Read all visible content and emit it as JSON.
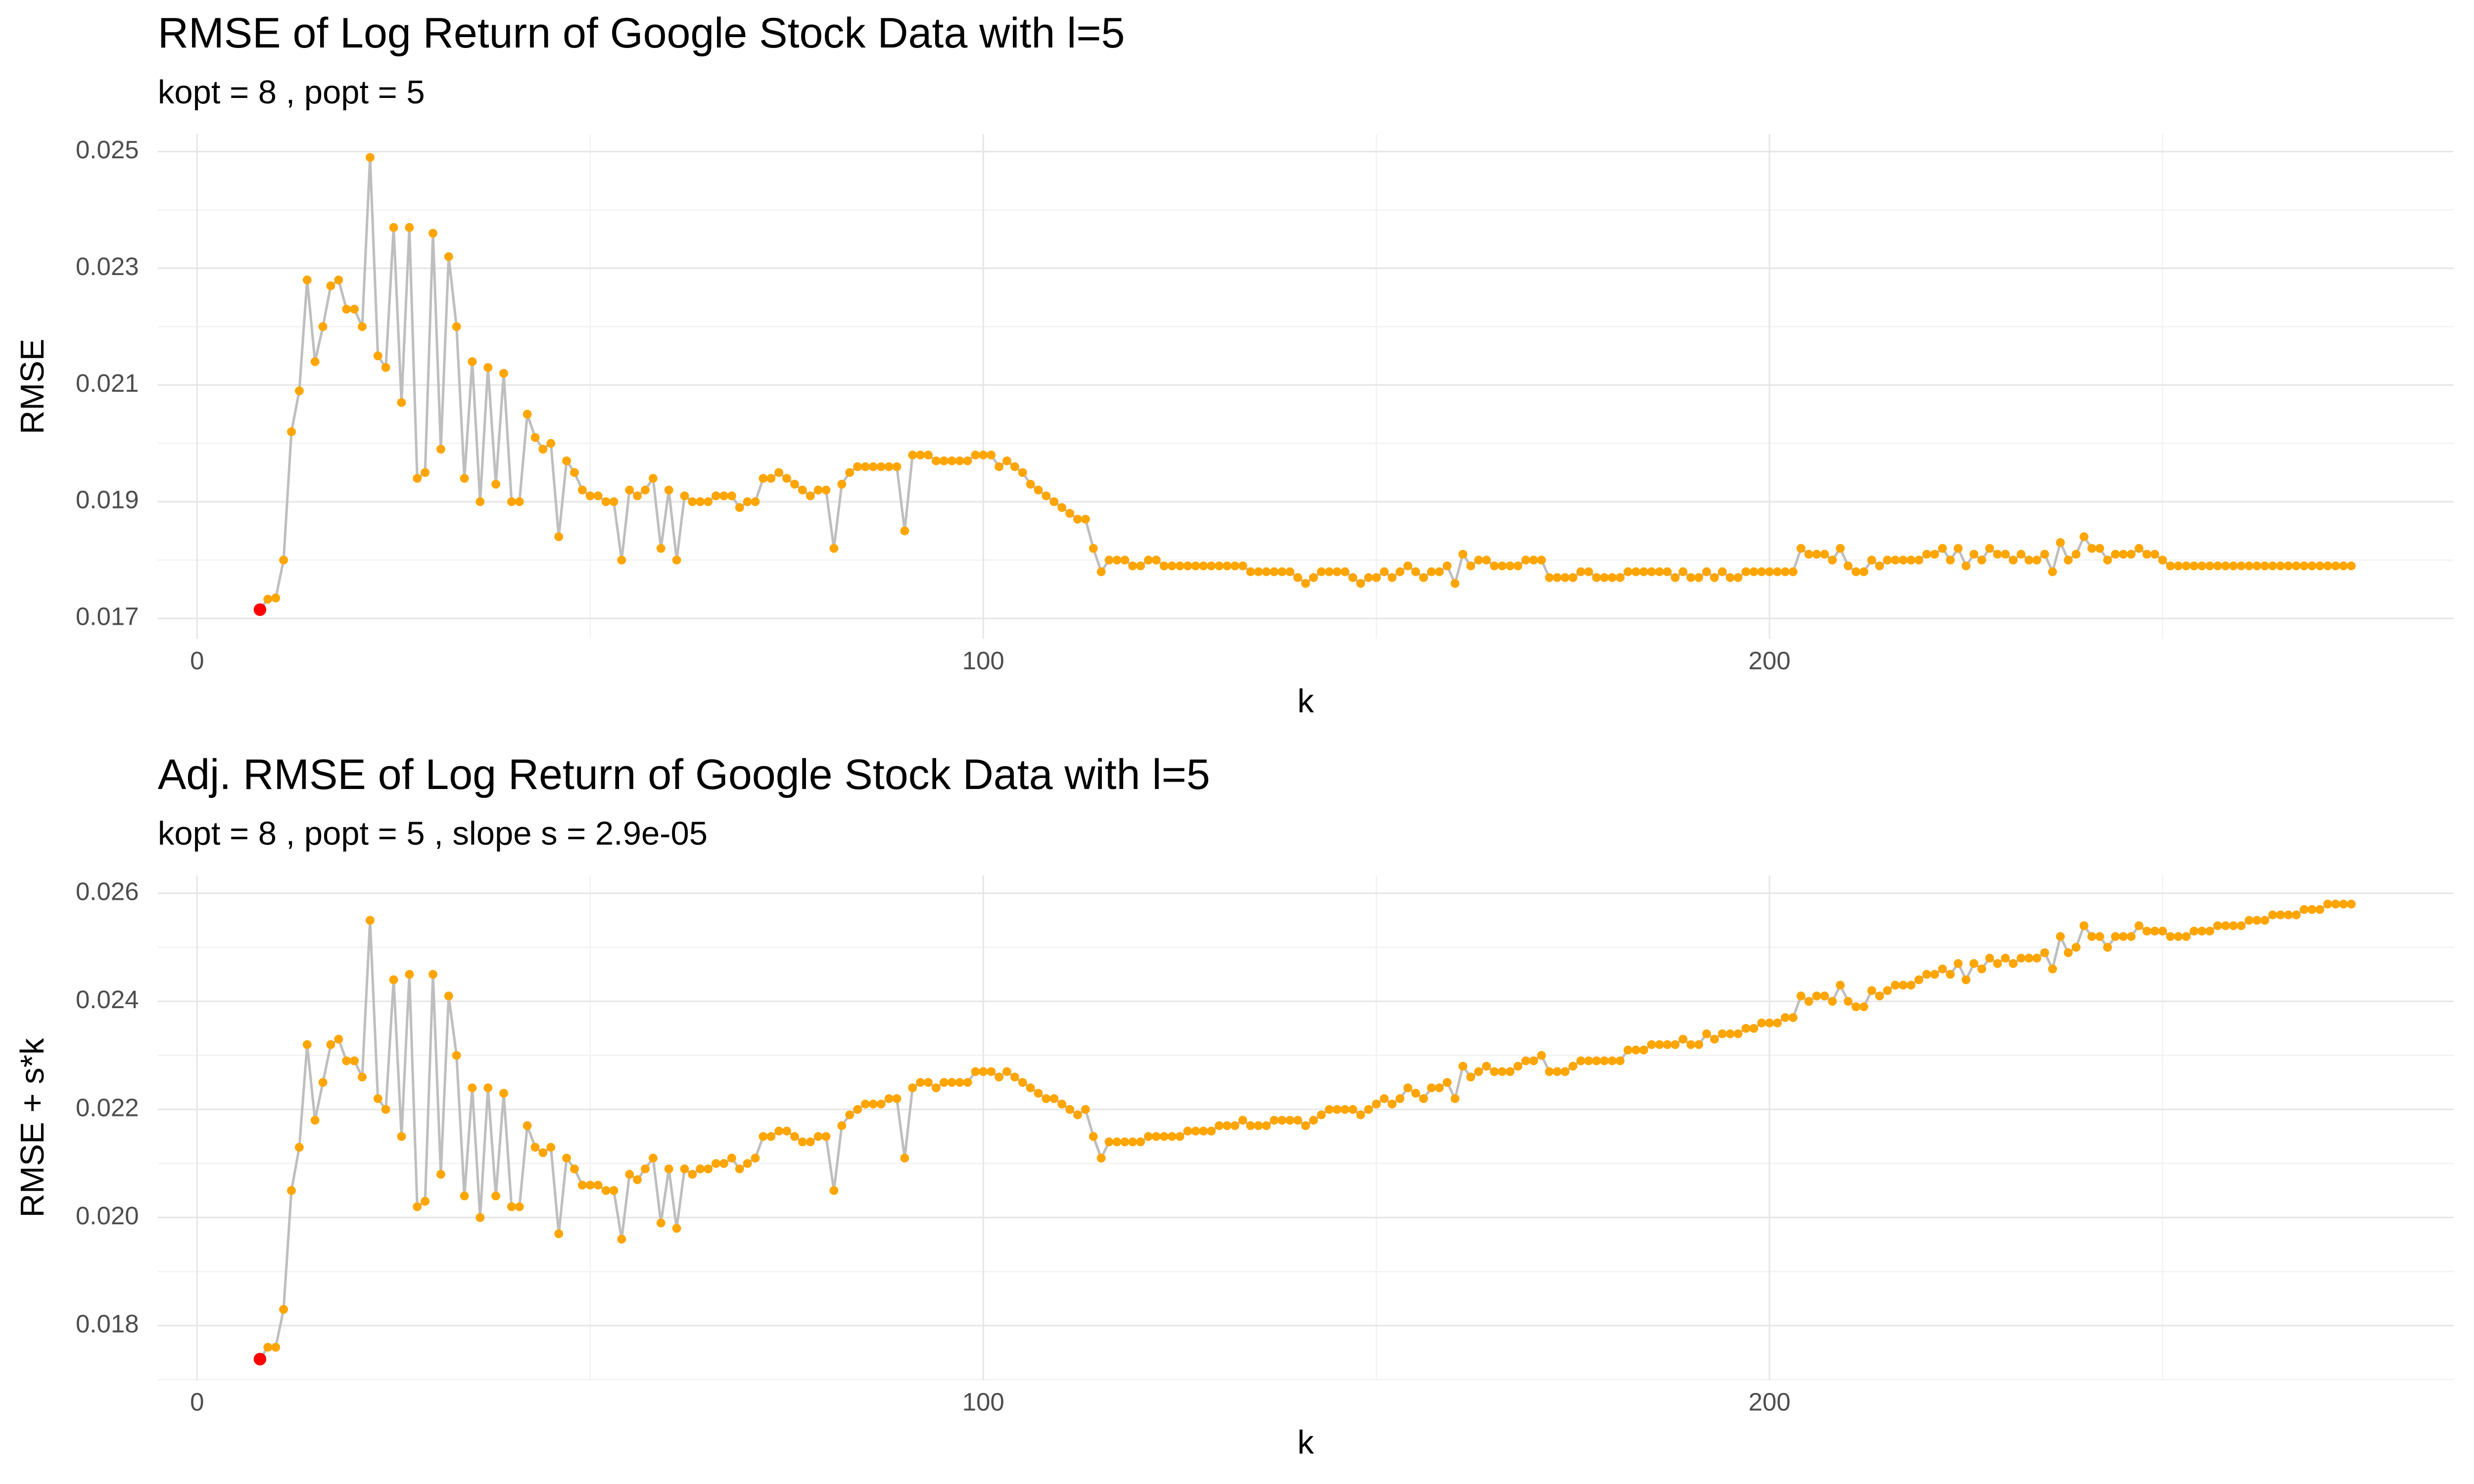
{
  "chart_data": [
    {
      "type": "line",
      "title": "RMSE of Log Return of Google Stock Data with l=5",
      "subtitle": "kopt = 8 , popt = 5",
      "xlabel": "k",
      "ylabel": "RMSE",
      "x": [
        8,
        9,
        10,
        11,
        12,
        13,
        14,
        15,
        16,
        17,
        18,
        19,
        20,
        21,
        22,
        23,
        24,
        25,
        26,
        27,
        28,
        29,
        30,
        31,
        32,
        33,
        34,
        35,
        36,
        37,
        38,
        39,
        40,
        41,
        42,
        43,
        44,
        45,
        46,
        47,
        48,
        49,
        50,
        51,
        52,
        53,
        54,
        55,
        56,
        57,
        58,
        59,
        60,
        61,
        62,
        63,
        64,
        65,
        66,
        67,
        68,
        69,
        70,
        71,
        72,
        73,
        74,
        75,
        76,
        77,
        78,
        79,
        80,
        81,
        82,
        83,
        84,
        85,
        86,
        87,
        88,
        89,
        90,
        91,
        92,
        93,
        94,
        95,
        96,
        97,
        98,
        99,
        100,
        101,
        102,
        103,
        104,
        105,
        106,
        107,
        108,
        109,
        110,
        111,
        112,
        113,
        114,
        115,
        116,
        117,
        118,
        119,
        120,
        121,
        122,
        123,
        124,
        125,
        126,
        127,
        128,
        129,
        130,
        131,
        132,
        133,
        134,
        135,
        136,
        137,
        138,
        139,
        140,
        141,
        142,
        143,
        144,
        145,
        146,
        147,
        148,
        149,
        150,
        151,
        152,
        153,
        154,
        155,
        156,
        157,
        158,
        159,
        160,
        161,
        162,
        163,
        164,
        165,
        166,
        167,
        168,
        169,
        170,
        171,
        172,
        173,
        174,
        175,
        176,
        177,
        178,
        179,
        180,
        181,
        182,
        183,
        184,
        185,
        186,
        187,
        188,
        189,
        190,
        191,
        192,
        193,
        194,
        195,
        196,
        197,
        198,
        199,
        200,
        201,
        202,
        203,
        204,
        205,
        206,
        207,
        208,
        209,
        210,
        211,
        212,
        213,
        214,
        215,
        216,
        217,
        218,
        219,
        220,
        221,
        222,
        223,
        224,
        225,
        226,
        227,
        228,
        229,
        230,
        231,
        232,
        233,
        234,
        235,
        236,
        237,
        238,
        239,
        240,
        241,
        242,
        243,
        244,
        245,
        246,
        247,
        248,
        249,
        250,
        251,
        252,
        253,
        254,
        255,
        256,
        257,
        258,
        259,
        260,
        261,
        262,
        263,
        264,
        265,
        266,
        267,
        268,
        269,
        270,
        271,
        272,
        273,
        274
      ],
      "series": [
        {
          "color": "#ffa500",
          "line_color": "#bebebe",
          "values": [
            0.01715,
            0.01733,
            0.01735,
            0.018,
            0.0202,
            0.0209,
            0.0228,
            0.0214,
            0.022,
            0.0227,
            0.0228,
            0.0223,
            0.0223,
            0.022,
            0.0249,
            0.0215,
            0.0213,
            0.0237,
            0.0207,
            0.0237,
            0.0194,
            0.0195,
            0.0236,
            0.0199,
            0.0232,
            0.022,
            0.0194,
            0.0214,
            0.019,
            0.0213,
            0.0193,
            0.0212,
            0.019,
            0.019,
            0.0205,
            0.0201,
            0.0199,
            0.02,
            0.0184,
            0.0197,
            0.0195,
            0.0192,
            0.0191,
            0.0191,
            0.019,
            0.019,
            0.018,
            0.0192,
            0.0191,
            0.0192,
            0.0194,
            0.0182,
            0.0192,
            0.018,
            0.0191,
            0.019,
            0.019,
            0.019,
            0.0191,
            0.0191,
            0.0191,
            0.0189,
            0.019,
            0.019,
            0.0194,
            0.0194,
            0.0195,
            0.0194,
            0.0193,
            0.0192,
            0.0191,
            0.0192,
            0.0192,
            0.0182,
            0.0193,
            0.0195,
            0.0196,
            0.0196,
            0.0196,
            0.0196,
            0.0196,
            0.0196,
            0.0185,
            0.0198,
            0.0198,
            0.0198,
            0.0197,
            0.0197,
            0.0197,
            0.0197,
            0.0197,
            0.0198,
            0.0198,
            0.0198,
            0.0196,
            0.0197,
            0.0196,
            0.0195,
            0.0193,
            0.0192,
            0.0191,
            0.019,
            0.0189,
            0.0188,
            0.0187,
            0.0187,
            0.0182,
            0.0178,
            0.018,
            0.018,
            0.018,
            0.0179,
            0.0179,
            0.018,
            0.018,
            0.0179,
            0.0179,
            0.0179,
            0.0179,
            0.0179,
            0.0179,
            0.0179,
            0.0179,
            0.0179,
            0.0179,
            0.0179,
            0.0178,
            0.0178,
            0.0178,
            0.0178,
            0.0178,
            0.0178,
            0.0177,
            0.0176,
            0.0177,
            0.0178,
            0.0178,
            0.0178,
            0.0178,
            0.0177,
            0.0176,
            0.0177,
            0.0177,
            0.0178,
            0.0177,
            0.0178,
            0.0179,
            0.0178,
            0.0177,
            0.0178,
            0.0178,
            0.0179,
            0.0176,
            0.0181,
            0.0179,
            0.018,
            0.018,
            0.0179,
            0.0179,
            0.0179,
            0.0179,
            0.018,
            0.018,
            0.018,
            0.0177,
            0.0177,
            0.0177,
            0.0177,
            0.0178,
            0.0178,
            0.0177,
            0.0177,
            0.0177,
            0.0177,
            0.0178,
            0.0178,
            0.0178,
            0.0178,
            0.0178,
            0.0178,
            0.0177,
            0.0178,
            0.0177,
            0.0177,
            0.0178,
            0.0177,
            0.0178,
            0.0177,
            0.0177,
            0.0178,
            0.0178,
            0.0178,
            0.0178,
            0.0178,
            0.0178,
            0.0178,
            0.0182,
            0.0181,
            0.0181,
            0.0181,
            0.018,
            0.0182,
            0.0179,
            0.0178,
            0.0178,
            0.018,
            0.0179,
            0.018,
            0.018,
            0.018,
            0.018,
            0.018,
            0.0181,
            0.0181,
            0.0182,
            0.018,
            0.0182,
            0.0179,
            0.0181,
            0.018,
            0.0182,
            0.0181,
            0.0181,
            0.018,
            0.0181,
            0.018,
            0.018,
            0.0181,
            0.0178,
            0.0183,
            0.018,
            0.0181,
            0.0184,
            0.0182,
            0.0182,
            0.018,
            0.0181,
            0.0181,
            0.0181,
            0.0182,
            0.0181,
            0.0181,
            0.018,
            0.0179,
            0.0179,
            0.0179,
            0.0179,
            0.0179,
            0.0179,
            0.0179,
            0.0179,
            0.0179,
            0.0179,
            0.0179,
            0.0179,
            0.0179,
            0.0179,
            0.0179,
            0.0179,
            0.0179,
            0.0179,
            0.0179,
            0.0179,
            0.0179,
            0.0179,
            0.0179,
            0.0179
          ]
        }
      ],
      "highlight_x": 8,
      "highlight_color": "#ff0000",
      "xlim": [
        -5,
        287
      ],
      "xticks": [
        0,
        100,
        200
      ],
      "xminor": [
        50,
        150,
        250
      ],
      "ylim": [
        0.01665,
        0.0253
      ],
      "yticks": [
        0.017,
        0.019,
        0.021,
        0.023,
        0.025
      ],
      "yminor": [
        0.018,
        0.02,
        0.022,
        0.024
      ],
      "grid": true
    },
    {
      "type": "line",
      "title": "Adj. RMSE of Log Return of Google Stock Data with l=5",
      "subtitle": "kopt = 8 , popt = 5 , slope s =  2.9e-05",
      "xlabel": "k",
      "ylabel": "RMSE + s*k",
      "x": [
        8,
        9,
        10,
        11,
        12,
        13,
        14,
        15,
        16,
        17,
        18,
        19,
        20,
        21,
        22,
        23,
        24,
        25,
        26,
        27,
        28,
        29,
        30,
        31,
        32,
        33,
        34,
        35,
        36,
        37,
        38,
        39,
        40,
        41,
        42,
        43,
        44,
        45,
        46,
        47,
        48,
        49,
        50,
        51,
        52,
        53,
        54,
        55,
        56,
        57,
        58,
        59,
        60,
        61,
        62,
        63,
        64,
        65,
        66,
        67,
        68,
        69,
        70,
        71,
        72,
        73,
        74,
        75,
        76,
        77,
        78,
        79,
        80,
        81,
        82,
        83,
        84,
        85,
        86,
        87,
        88,
        89,
        90,
        91,
        92,
        93,
        94,
        95,
        96,
        97,
        98,
        99,
        100,
        101,
        102,
        103,
        104,
        105,
        106,
        107,
        108,
        109,
        110,
        111,
        112,
        113,
        114,
        115,
        116,
        117,
        118,
        119,
        120,
        121,
        122,
        123,
        124,
        125,
        126,
        127,
        128,
        129,
        130,
        131,
        132,
        133,
        134,
        135,
        136,
        137,
        138,
        139,
        140,
        141,
        142,
        143,
        144,
        145,
        146,
        147,
        148,
        149,
        150,
        151,
        152,
        153,
        154,
        155,
        156,
        157,
        158,
        159,
        160,
        161,
        162,
        163,
        164,
        165,
        166,
        167,
        168,
        169,
        170,
        171,
        172,
        173,
        174,
        175,
        176,
        177,
        178,
        179,
        180,
        181,
        182,
        183,
        184,
        185,
        186,
        187,
        188,
        189,
        190,
        191,
        192,
        193,
        194,
        195,
        196,
        197,
        198,
        199,
        200,
        201,
        202,
        203,
        204,
        205,
        206,
        207,
        208,
        209,
        210,
        211,
        212,
        213,
        214,
        215,
        216,
        217,
        218,
        219,
        220,
        221,
        222,
        223,
        224,
        225,
        226,
        227,
        228,
        229,
        230,
        231,
        232,
        233,
        234,
        235,
        236,
        237,
        238,
        239,
        240,
        241,
        242,
        243,
        244,
        245,
        246,
        247,
        248,
        249,
        250,
        251,
        252,
        253,
        254,
        255,
        256,
        257,
        258,
        259,
        260,
        261,
        262,
        263,
        264,
        265,
        266,
        267,
        268,
        269,
        270,
        271,
        272,
        273,
        274
      ],
      "series": [
        {
          "color": "#ffa500",
          "line_color": "#bebebe",
          "values": [
            0.01738,
            0.0176,
            0.0176,
            0.0183,
            0.0205,
            0.0213,
            0.0232,
            0.0218,
            0.0225,
            0.0232,
            0.0233,
            0.0229,
            0.0229,
            0.0226,
            0.0255,
            0.0222,
            0.022,
            0.0244,
            0.0215,
            0.0245,
            0.0202,
            0.0203,
            0.0245,
            0.0208,
            0.0241,
            0.023,
            0.0204,
            0.0224,
            0.02,
            0.0224,
            0.0204,
            0.0223,
            0.0202,
            0.0202,
            0.0217,
            0.0213,
            0.0212,
            0.0213,
            0.0197,
            0.0211,
            0.0209,
            0.0206,
            0.0206,
            0.0206,
            0.0205,
            0.0205,
            0.0196,
            0.0208,
            0.0207,
            0.0209,
            0.0211,
            0.0199,
            0.0209,
            0.0198,
            0.0209,
            0.0208,
            0.0209,
            0.0209,
            0.021,
            0.021,
            0.0211,
            0.0209,
            0.021,
            0.0211,
            0.0215,
            0.0215,
            0.0216,
            0.0216,
            0.0215,
            0.0214,
            0.0214,
            0.0215,
            0.0215,
            0.0205,
            0.0217,
            0.0219,
            0.022,
            0.0221,
            0.0221,
            0.0221,
            0.0222,
            0.0222,
            0.0211,
            0.0224,
            0.0225,
            0.0225,
            0.0224,
            0.0225,
            0.0225,
            0.0225,
            0.0225,
            0.0227,
            0.0227,
            0.0227,
            0.0226,
            0.0227,
            0.0226,
            0.0225,
            0.0224,
            0.0223,
            0.0222,
            0.0222,
            0.0221,
            0.022,
            0.0219,
            0.022,
            0.0215,
            0.0211,
            0.0214,
            0.0214,
            0.0214,
            0.0214,
            0.0214,
            0.0215,
            0.0215,
            0.0215,
            0.0215,
            0.0215,
            0.0216,
            0.0216,
            0.0216,
            0.0216,
            0.0217,
            0.0217,
            0.0217,
            0.0218,
            0.0217,
            0.0217,
            0.0217,
            0.0218,
            0.0218,
            0.0218,
            0.0218,
            0.0217,
            0.0218,
            0.0219,
            0.022,
            0.022,
            0.022,
            0.022,
            0.0219,
            0.022,
            0.0221,
            0.0222,
            0.0221,
            0.0222,
            0.0224,
            0.0223,
            0.0222,
            0.0224,
            0.0224,
            0.0225,
            0.0222,
            0.0228,
            0.0226,
            0.0227,
            0.0228,
            0.0227,
            0.0227,
            0.0227,
            0.0228,
            0.0229,
            0.0229,
            0.023,
            0.0227,
            0.0227,
            0.0227,
            0.0228,
            0.0229,
            0.0229,
            0.0229,
            0.0229,
            0.0229,
            0.0229,
            0.0231,
            0.0231,
            0.0231,
            0.0232,
            0.0232,
            0.0232,
            0.0232,
            0.0233,
            0.0232,
            0.0232,
            0.0234,
            0.0233,
            0.0234,
            0.0234,
            0.0234,
            0.0235,
            0.0235,
            0.0236,
            0.0236,
            0.0236,
            0.0237,
            0.0237,
            0.0241,
            0.024,
            0.0241,
            0.0241,
            0.024,
            0.0243,
            0.024,
            0.0239,
            0.0239,
            0.0242,
            0.0241,
            0.0242,
            0.0243,
            0.0243,
            0.0243,
            0.0244,
            0.0245,
            0.0245,
            0.0246,
            0.0245,
            0.0247,
            0.0244,
            0.0247,
            0.0246,
            0.0248,
            0.0247,
            0.0248,
            0.0247,
            0.0248,
            0.0248,
            0.0248,
            0.0249,
            0.0246,
            0.0252,
            0.0249,
            0.025,
            0.0254,
            0.0252,
            0.0252,
            0.025,
            0.0252,
            0.0252,
            0.0252,
            0.0254,
            0.0253,
            0.0253,
            0.0253,
            0.0252,
            0.0252,
            0.0252,
            0.0253,
            0.0253,
            0.0253,
            0.0254,
            0.0254,
            0.0254,
            0.0254,
            0.0255,
            0.0255,
            0.0255,
            0.0256,
            0.0256,
            0.0256,
            0.0256,
            0.0257,
            0.0257,
            0.0257,
            0.0258,
            0.0258,
            0.0258,
            0.0258
          ]
        }
      ],
      "highlight_x": 8,
      "highlight_color": "#ff0000",
      "xlim": [
        -5,
        287
      ],
      "xticks": [
        0,
        100,
        200
      ],
      "xminor": [
        50,
        150,
        250
      ],
      "ylim": [
        0.01699,
        0.02633
      ],
      "yticks": [
        0.018,
        {
          "value": 0.02,
          "label": "0.020"
        },
        0.022,
        0.024,
        0.026
      ],
      "yminor": [
        0.017,
        0.019,
        0.021,
        0.023,
        0.025
      ],
      "grid": true
    }
  ]
}
